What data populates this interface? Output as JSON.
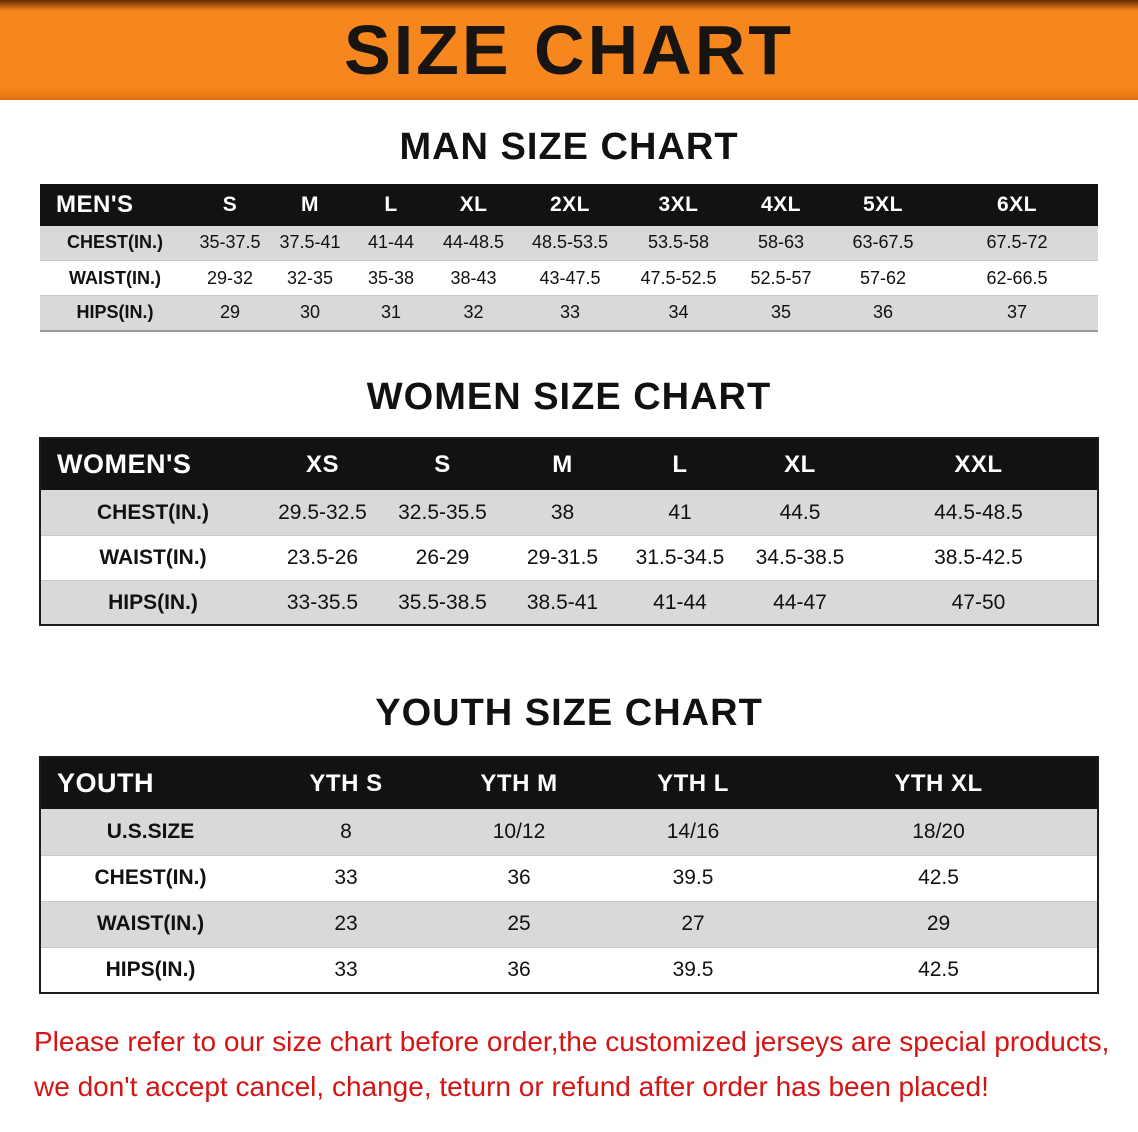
{
  "banner": {
    "title": "SIZE CHART"
  },
  "sections": [
    {
      "id": "men",
      "heading": "MAN SIZE CHART",
      "header": [
        "MEN'S",
        "S",
        "M",
        "L",
        "XL",
        "2XL",
        "3XL",
        "4XL",
        "5XL",
        "6XL"
      ],
      "rows": [
        {
          "label": "CHEST(IN.)",
          "values": [
            "35-37.5",
            "37.5-41",
            "41-44",
            "44-48.5",
            "48.5-53.5",
            "53.5-58",
            "58-63",
            "63-67.5",
            "67.5-72"
          ]
        },
        {
          "label": "WAIST(IN.)",
          "values": [
            "29-32",
            "32-35",
            "35-38",
            "38-43",
            "43-47.5",
            "47.5-52.5",
            "52.5-57",
            "57-62",
            "62-66.5"
          ]
        },
        {
          "label": "HIPS(IN.)",
          "values": [
            "29",
            "30",
            "31",
            "32",
            "33",
            "34",
            "35",
            "36",
            "37"
          ]
        }
      ]
    },
    {
      "id": "women",
      "heading": "WOMEN SIZE CHART",
      "header": [
        "WOMEN'S",
        "XS",
        "S",
        "M",
        "L",
        "XL",
        "XXL"
      ],
      "rows": [
        {
          "label": "CHEST(IN.)",
          "values": [
            "29.5-32.5",
            "32.5-35.5",
            "38",
            "41",
            "44.5",
            "44.5-48.5"
          ]
        },
        {
          "label": "WAIST(IN.)",
          "values": [
            "23.5-26",
            "26-29",
            "29-31.5",
            "31.5-34.5",
            "34.5-38.5",
            "38.5-42.5"
          ]
        },
        {
          "label": "HIPS(IN.)",
          "values": [
            "33-35.5",
            "35.5-38.5",
            "38.5-41",
            "41-44",
            "44-47",
            "47-50"
          ]
        }
      ]
    },
    {
      "id": "youth",
      "heading": "YOUTH SIZE CHART",
      "header": [
        "YOUTH",
        "YTH S",
        "YTH M",
        "YTH L",
        "YTH XL"
      ],
      "rows": [
        {
          "label": "U.S.SIZE",
          "values": [
            "8",
            "10/12",
            "14/16",
            "18/20"
          ]
        },
        {
          "label": "CHEST(IN.)",
          "values": [
            "33",
            "36",
            "39.5",
            "42.5"
          ]
        },
        {
          "label": "WAIST(IN.)",
          "values": [
            "23",
            "25",
            "27",
            "29"
          ]
        },
        {
          "label": "HIPS(IN.)",
          "values": [
            "33",
            "36",
            "39.5",
            "42.5"
          ]
        }
      ]
    }
  ],
  "disclaimer": {
    "line1": "Please refer to our size chart before order,the customized jerseys are special products,",
    "line2": "we don't accept cancel, change, teturn or refund after order has been placed!"
  },
  "colors": {
    "banner_orange": "#f6871f",
    "header_black": "#121212",
    "row_gray": "#d9d9d9",
    "row_white": "#ffffff",
    "disclaimer_red": "#d51414"
  }
}
